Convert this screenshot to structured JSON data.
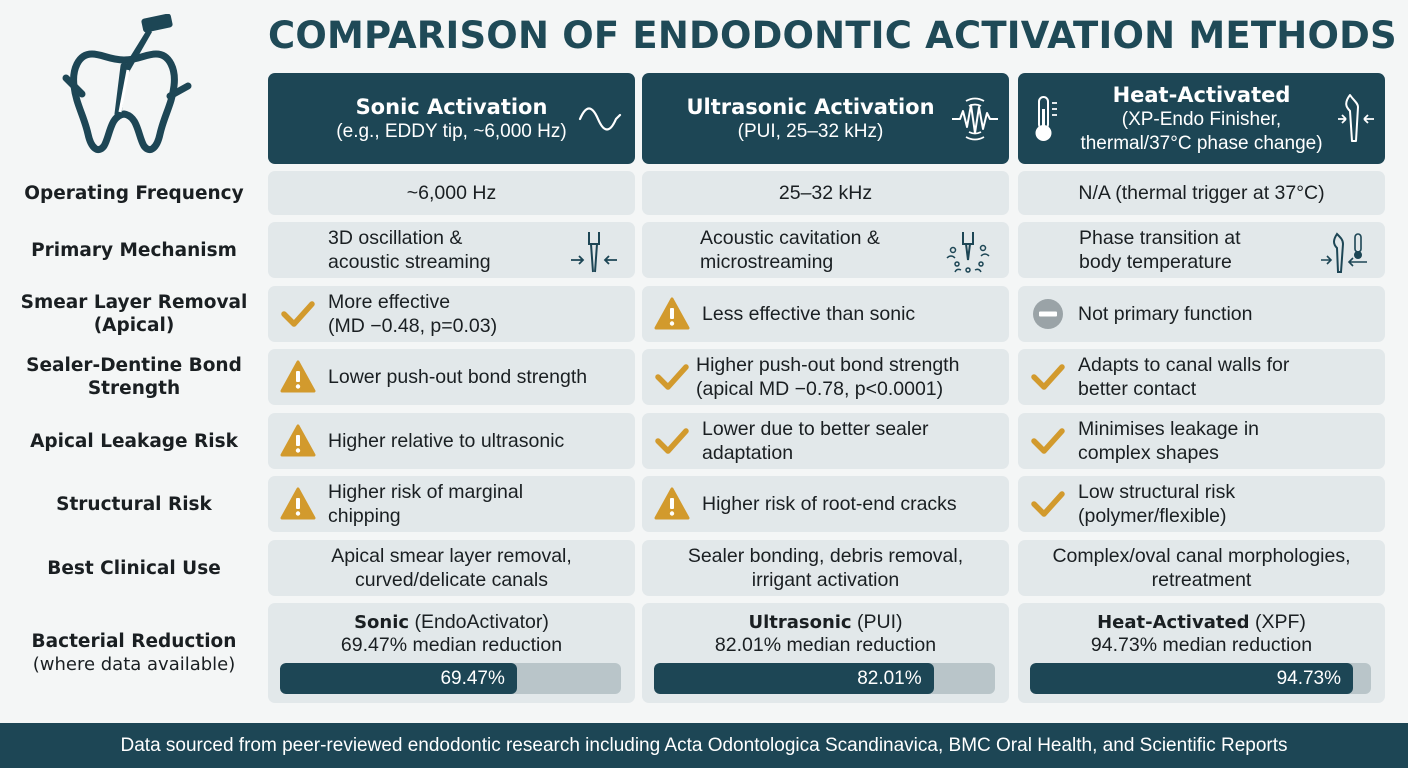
{
  "title": "COMPARISON OF ENDODONTIC ACTIVATION METHODS",
  "logo_icon": "tooth-with-instrument-icon",
  "columns": [
    {
      "title": "Sonic Activation",
      "subtitle": "(e.g., EDDY tip, ~6,000 Hz)",
      "icon": "sine-wave-icon"
    },
    {
      "title": "Ultrasonic Activation",
      "subtitle": "(PUI, 25–32 kHz)",
      "icon": "ultrasonic-wave-icon"
    },
    {
      "title": "Heat-Activated",
      "subtitle": "(XP-Endo Finisher,",
      "subtitle2": "thermal/37°C phase change)",
      "icon": "thermometer-icon",
      "icon2": "file-tip-icon"
    }
  ],
  "rows": [
    {
      "label": "Operating Frequency",
      "cells": [
        {
          "text": "~6,000 Hz"
        },
        {
          "text": "25–32 kHz"
        },
        {
          "text": "N/A (thermal trigger at 37°C)"
        }
      ]
    },
    {
      "label": "Primary Mechanism",
      "cells": [
        {
          "text": "3D oscillation & acoustic streaming",
          "icon": "oscillating-tip-icon"
        },
        {
          "text": "Acoustic cavitation & microstreaming",
          "icon": "cavitation-tip-icon"
        },
        {
          "text": "Phase transition at body temperature",
          "icon": "phase-tip-icon"
        }
      ]
    },
    {
      "label": "Smear Layer Removal",
      "label2": "(Apical)",
      "cells": [
        {
          "text": "More effective",
          "text2": "(MD −0.48, p=0.03)",
          "status": "check"
        },
        {
          "text": "Less effective than sonic",
          "status": "warning"
        },
        {
          "text": "Not primary function",
          "status": "neutral"
        }
      ]
    },
    {
      "label": "Sealer-Dentine Bond",
      "label2": "Strength",
      "cells": [
        {
          "text": "Lower push-out bond strength",
          "status": "warning"
        },
        {
          "text": "Higher push-out bond strength",
          "text2": "(apical MD −0.78, p<0.0001)",
          "status": "check"
        },
        {
          "text": "Adapts to canal walls for",
          "text2": "better contact",
          "status": "check"
        }
      ]
    },
    {
      "label": "Apical Leakage Risk",
      "cells": [
        {
          "text": "Higher relative to ultrasonic",
          "status": "warning"
        },
        {
          "text": "Lower due to better sealer",
          "text2": "adaptation",
          "status": "check"
        },
        {
          "text": "Minimises leakage in",
          "text2": "complex shapes",
          "status": "check"
        }
      ]
    },
    {
      "label": "Structural Risk",
      "cells": [
        {
          "text": "Higher risk of marginal",
          "text2": "chipping",
          "status": "warning"
        },
        {
          "text": "Higher risk of root-end cracks",
          "status": "warning"
        },
        {
          "text": "Low structural risk",
          "text2": "(polymer/flexible)",
          "status": "check"
        }
      ]
    },
    {
      "label": "Best Clinical Use",
      "cells": [
        {
          "text": "Apical smear layer removal,",
          "text2": "curved/delicate canals"
        },
        {
          "text": "Sealer bonding, debris removal,",
          "text2": "irrigant activation"
        },
        {
          "text": "Complex/oval canal morphologies,",
          "text2": "retreatment"
        }
      ]
    }
  ],
  "bacterial": {
    "label": "Bacterial Reduction",
    "label2": "(where data available)",
    "cells": [
      {
        "method": "Sonic",
        "device": " (EndoActivator)",
        "text": "69.47% median reduction",
        "value": 69.47,
        "bar_label": "69.47%"
      },
      {
        "method": "Ultrasonic",
        "device": " (PUI)",
        "text": "82.01% median reduction",
        "value": 82.01,
        "bar_label": "82.01%"
      },
      {
        "method": "Heat-Activated",
        "device": " (XPF)",
        "text": "94.73% median reduction",
        "value": 94.73,
        "bar_label": "94.73%"
      }
    ]
  },
  "colors": {
    "primary": "#1d4655",
    "check": "#d29a2d",
    "warning": "#d29a2d",
    "neutral": "#9aa3a7",
    "cell_bg": "#e2e8ea"
  },
  "footer": "Data sourced from peer-reviewed endodontic research including Acta Odontologica Scandinavica, BMC Oral Health, and Scientific Reports"
}
